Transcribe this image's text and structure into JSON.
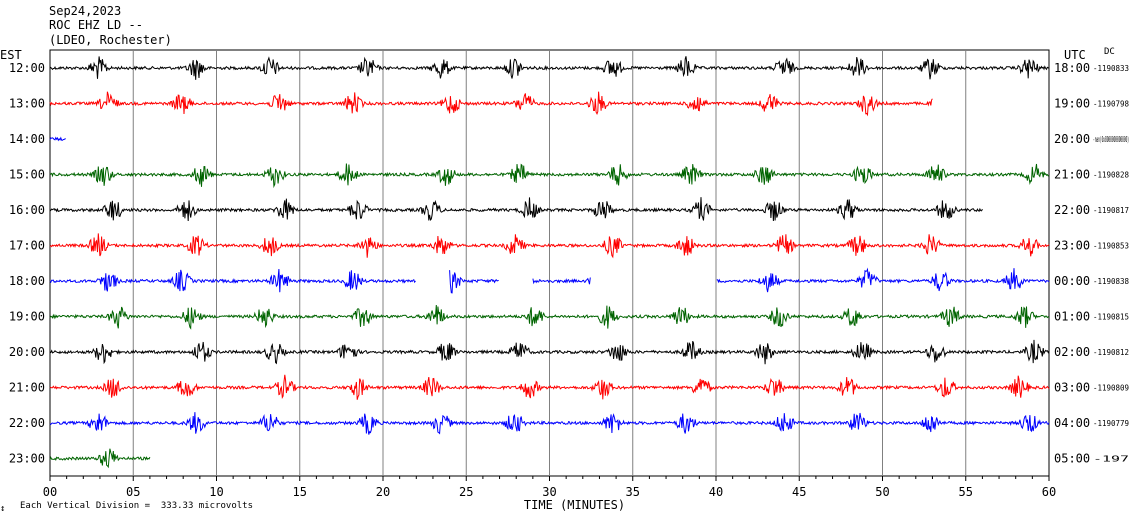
{
  "header": {
    "date": "Sep24,2023",
    "station": "ROC EHZ LD --",
    "network": "(LDEO, Rochester)"
  },
  "left_tz": "EST",
  "right_tz": "UTC",
  "dc_label": "DC",
  "footer": {
    "division_note": "Each Vertical Division =  333.33 microvolts"
  },
  "chart_data": {
    "type": "line",
    "title": "",
    "xlabel": "TIME (MINUTES)",
    "ylabel": "",
    "xlim": [
      0,
      60
    ],
    "x_ticks": [
      "00",
      "05",
      "10",
      "15",
      "20",
      "25",
      "30",
      "35",
      "40",
      "45",
      "50",
      "55",
      "60"
    ],
    "grid": true,
    "colors": {
      "black": "#000000",
      "red": "#ff0000",
      "blue": "#0000ff",
      "green": "#006400",
      "grid": "#808080"
    },
    "rows": [
      {
        "est": "12:00",
        "utc": "18:00",
        "dc": "-1190833",
        "color": "black",
        "end_min": 60
      },
      {
        "est": "13:00",
        "utc": "19:00",
        "dc": "-1190798",
        "color": "red",
        "end_min": 53
      },
      {
        "est": "14:00",
        "utc": "20:00",
        "dc": "-nan(0x8000000000000)",
        "color": "blue",
        "end_min": 1
      },
      {
        "est": "15:00",
        "utc": "21:00",
        "dc": "-1190828",
        "color": "green",
        "end_min": 60
      },
      {
        "est": "16:00",
        "utc": "22:00",
        "dc": "-1190817",
        "color": "black",
        "end_min": 56
      },
      {
        "est": "17:00",
        "utc": "23:00",
        "dc": "-1190853",
        "color": "red",
        "end_min": 60
      },
      {
        "est": "18:00",
        "utc": "00:00",
        "dc": "-1190838",
        "color": "blue",
        "end_min": 60
      },
      {
        "est": "19:00",
        "utc": "01:00",
        "dc": "-1190815",
        "color": "green",
        "end_min": 60
      },
      {
        "est": "20:00",
        "utc": "02:00",
        "dc": "-1190812",
        "color": "black",
        "end_min": 60
      },
      {
        "est": "21:00",
        "utc": "03:00",
        "dc": "-1190809",
        "color": "red",
        "end_min": 60
      },
      {
        "est": "22:00",
        "utc": "04:00",
        "dc": "-1190779",
        "color": "blue",
        "end_min": 60
      },
      {
        "est": "23:00",
        "utc": "05:00",
        "dc": "-197",
        "color": "green",
        "end_min": 6
      }
    ],
    "data_gaps": [
      {
        "row": "18:00",
        "from_min": 22,
        "to_min": 24
      },
      {
        "row": "18:00",
        "from_min": 27,
        "to_min": 29
      },
      {
        "row": "18:00",
        "from_min": 32.5,
        "to_min": 40
      }
    ],
    "bursts_at_min": [
      3.5,
      8.5,
      13.5,
      18.5,
      23.5,
      28.5,
      33.5,
      38.5,
      43.5,
      48.5,
      53.5,
      58.5
    ]
  }
}
